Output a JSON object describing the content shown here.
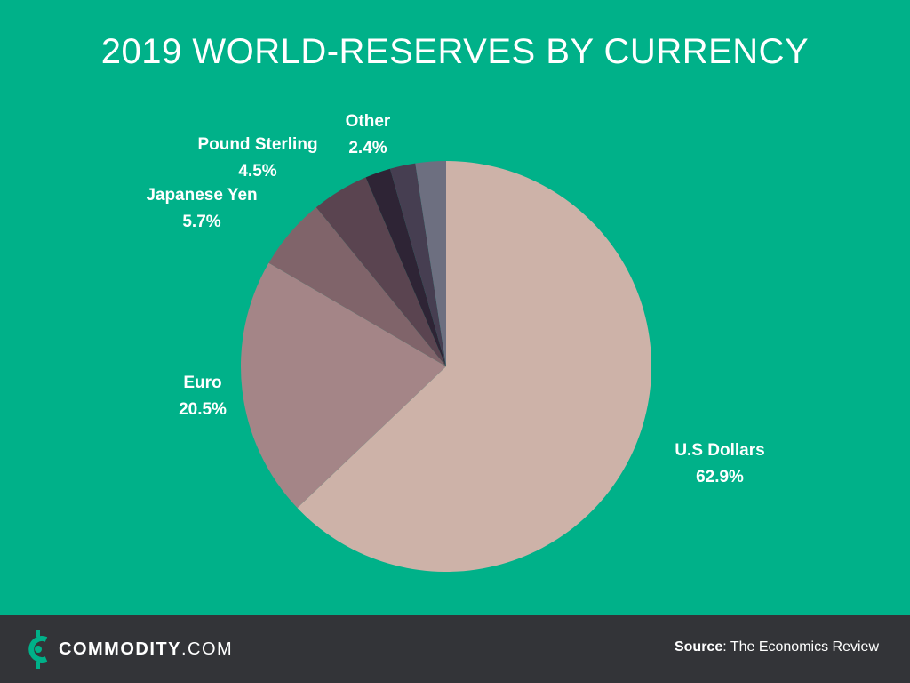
{
  "chart_data": {
    "type": "pie",
    "title": "2019 WORLD-RESERVES BY CURRENCY",
    "slices": [
      {
        "label": "U.S Dollars",
        "value": 62.9,
        "value_label": "62.9%",
        "color": "#cdb2a8"
      },
      {
        "label": "Euro",
        "value": 20.5,
        "value_label": "20.5%",
        "color": "#a48587"
      },
      {
        "label": "Japanese Yen",
        "value": 5.7,
        "value_label": "5.7%",
        "color": "#80646a"
      },
      {
        "label": "Pound Sterling",
        "value": 4.5,
        "value_label": "4.5%",
        "color": "#5a4450"
      },
      {
        "label": "",
        "value": 2.0,
        "value_label": "",
        "color": "#2e2435"
      },
      {
        "label": "",
        "value": 2.0,
        "value_label": "",
        "color": "#463e51"
      },
      {
        "label": "Other",
        "value": 2.4,
        "value_label": "2.4%",
        "color": "#6d6f80"
      }
    ],
    "start": "12 o'clock",
    "direction": "clockwise"
  },
  "footer": {
    "brand_name": "COMMODITY",
    "brand_domain": ".COM",
    "source_label": "Source",
    "source_text": ": The Economics Review",
    "logo_icon": "commodity-c-coin-icon"
  },
  "colors": {
    "background": "#00b189",
    "footer_background": "#333438",
    "text": "#ffffff"
  }
}
